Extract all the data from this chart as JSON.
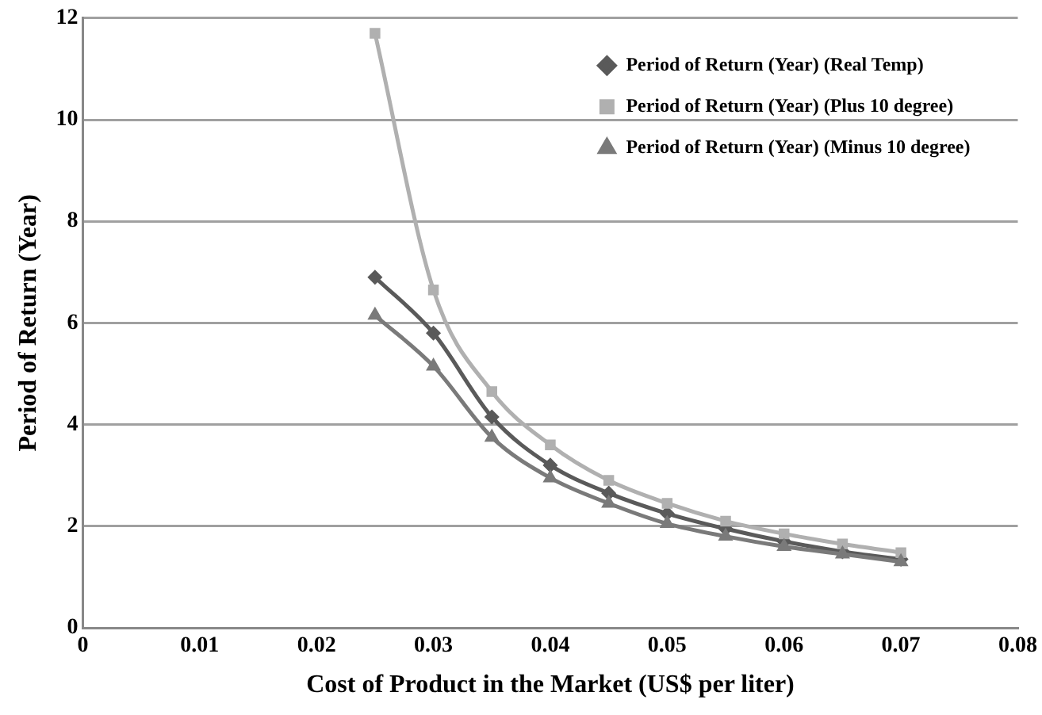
{
  "chart_data": {
    "type": "line",
    "xlabel": "Cost of Product in the Market (US$ per liter)",
    "ylabel": "Period of Return (Year)",
    "x": [
      0.025,
      0.03,
      0.035,
      0.04,
      0.045,
      0.05,
      0.055,
      0.06,
      0.065,
      0.07
    ],
    "series": [
      {
        "name": "Period of Return (Year) (Real Temp)",
        "color": "#5a5a5a",
        "marker": "diamond",
        "values": [
          6.9,
          5.8,
          4.15,
          3.2,
          2.65,
          2.25,
          1.95,
          1.7,
          1.5,
          1.35
        ]
      },
      {
        "name": "Period of Return (Year) (Plus 10 degree)",
        "color": "#b0b0b0",
        "marker": "square",
        "values": [
          11.7,
          6.65,
          4.65,
          3.6,
          2.9,
          2.45,
          2.1,
          1.85,
          1.65,
          1.48
        ]
      },
      {
        "name": "Period of Return (Year) (Minus 10 degree)",
        "color": "#7a7a7a",
        "marker": "triangle",
        "values": [
          6.15,
          5.15,
          3.75,
          2.95,
          2.45,
          2.05,
          1.8,
          1.6,
          1.45,
          1.3
        ]
      }
    ],
    "xlim": [
      0,
      0.08
    ],
    "xticks": [
      0,
      0.01,
      0.02,
      0.03,
      0.04,
      0.05,
      0.06,
      0.07,
      0.08
    ],
    "ylim": [
      0,
      12
    ],
    "yticks": [
      0,
      2,
      4,
      6,
      8,
      10,
      12
    ],
    "grid": "y",
    "legend": "top right",
    "line_style": "solid"
  }
}
